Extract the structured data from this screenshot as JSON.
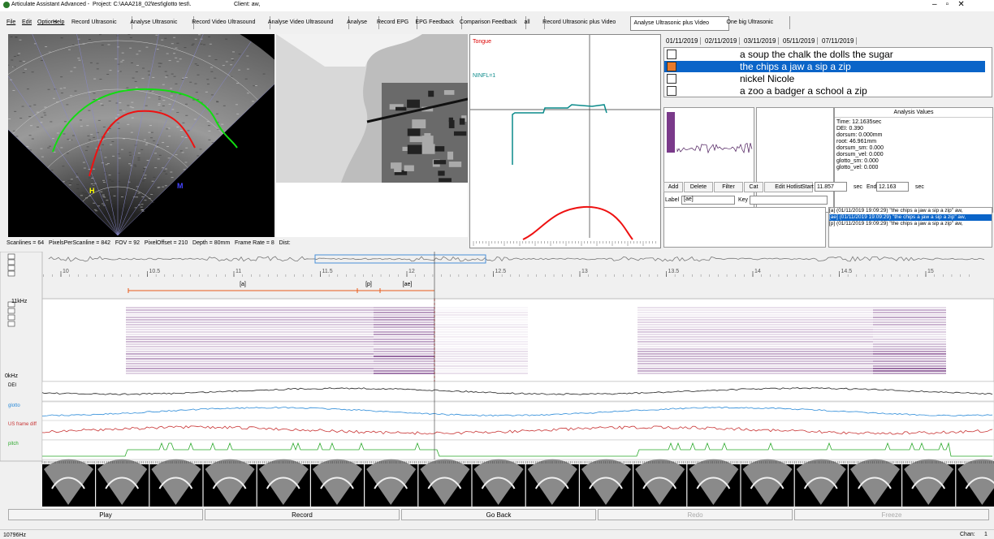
{
  "title_bar": {
    "app": "Articulate Assistant Advanced -",
    "project": "Project: C:\\AAA218_02\\test\\glotto test\\.",
    "client": "Client: aw,"
  },
  "menu": [
    "File",
    "Edit",
    "Options",
    "Help"
  ],
  "tabs": [
    "Record Ultrasonic",
    "Analyse Ultrasonic",
    "Record Video Ultrasound",
    "Analyse Video Ultrasound",
    "Analyse",
    "Record EPG",
    "EPG Feedback",
    "Comparison Feedback",
    "all",
    "Record Ultrasonic plus Video",
    "Analyse Ultrasonic plus Video",
    "One big Ultrasonic"
  ],
  "ultrasound": {
    "markers": [
      "H",
      "M"
    ],
    "status": "Scanlines = 64   PixelsPerScanline = 842   FOV = 92   PixelOffset = 210   Depth = 80mm   Frame Rate = 8   Dist:"
  },
  "tongue_panel": {
    "title": "Tongue",
    "label": "NINFL=1"
  },
  "date_tabs": [
    "01/11/2019",
    "02/11/2019",
    "03/11/2019",
    "05/11/2019",
    "07/11/2019"
  ],
  "prompts": [
    "a soup the chalk the dolls the sugar",
    "the chips  a jaw  a sip  a zip",
    "nickel Nicole",
    "a zoo  a badger  a school  a zip"
  ],
  "analysis_values": {
    "header": "Analysis Values",
    "lines": [
      "Time: 12.1635sec",
      "DEI: 0.390",
      "dorsum: 0.000mm",
      "root: 46.961mm",
      "dorsum_sm: 0.000",
      "dorsum_vel: 0.000",
      "glotto_sm: 0.000",
      "glotto_vel: 0.000"
    ]
  },
  "toolbar": {
    "buttons": [
      "Add",
      "Delete",
      "Filter",
      "Cat",
      "Edit Hotlist"
    ],
    "start_label": "Start",
    "start": "11.857",
    "start_unit": "sec",
    "end_label": "End",
    "end": "12.163",
    "end_unit": "sec"
  },
  "label_row": {
    "label": "Label",
    "value": "[ae]",
    "key": "Key"
  },
  "hotlist": [
    "[a] (01/11/2019 19:09:29) \"the chips  a jaw  a sip  a zip\" aw,",
    "[ae] (01/11/2019 19:09:29) \"the chips  a jaw  a sip  a zip\" aw,",
    "[p] (01/11/2019 19:09:29) \"the chips  a jaw  a sip  a zip\" aw,"
  ],
  "timeline": {
    "ticks": [
      10,
      10.5,
      11,
      11.5,
      12,
      12.5,
      13,
      13.5,
      14,
      14.5,
      15
    ],
    "segments": [
      "[a]",
      "[p]",
      "[ae]"
    ]
  },
  "spectrogram": {
    "top": "11kHz",
    "bottom": "0kHz"
  },
  "traces": [
    "DEI",
    "glotto",
    "US frame diff",
    "pitch"
  ],
  "controls": [
    "Play",
    "Record",
    "Go Back",
    "Redo",
    "Freeze"
  ],
  "status_bar": {
    "rate": "10796Hz",
    "channel": "Chan:",
    "channel_value": "1"
  }
}
